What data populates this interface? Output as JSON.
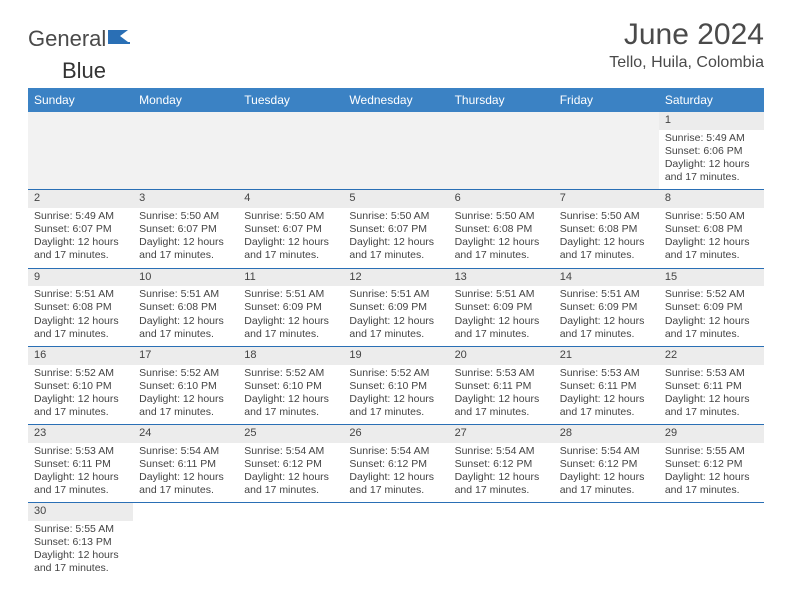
{
  "brand": {
    "part1": "General",
    "part2": "Blue"
  },
  "title": "June 2024",
  "location": "Tello, Huila, Colombia",
  "colors": {
    "header_bg": "#3b82c4",
    "header_text": "#ffffff",
    "rule": "#2a6fb5",
    "daynum_bg": "#ececec",
    "text": "#444444"
  },
  "weekdays": [
    "Sunday",
    "Monday",
    "Tuesday",
    "Wednesday",
    "Thursday",
    "Friday",
    "Saturday"
  ],
  "weeks": [
    [
      null,
      null,
      null,
      null,
      null,
      null,
      {
        "n": "1",
        "sr": "Sunrise: 5:49 AM",
        "ss": "Sunset: 6:06 PM",
        "d1": "Daylight: 12 hours",
        "d2": "and 17 minutes."
      }
    ],
    [
      {
        "n": "2",
        "sr": "Sunrise: 5:49 AM",
        "ss": "Sunset: 6:07 PM",
        "d1": "Daylight: 12 hours",
        "d2": "and 17 minutes."
      },
      {
        "n": "3",
        "sr": "Sunrise: 5:50 AM",
        "ss": "Sunset: 6:07 PM",
        "d1": "Daylight: 12 hours",
        "d2": "and 17 minutes."
      },
      {
        "n": "4",
        "sr": "Sunrise: 5:50 AM",
        "ss": "Sunset: 6:07 PM",
        "d1": "Daylight: 12 hours",
        "d2": "and 17 minutes."
      },
      {
        "n": "5",
        "sr": "Sunrise: 5:50 AM",
        "ss": "Sunset: 6:07 PM",
        "d1": "Daylight: 12 hours",
        "d2": "and 17 minutes."
      },
      {
        "n": "6",
        "sr": "Sunrise: 5:50 AM",
        "ss": "Sunset: 6:08 PM",
        "d1": "Daylight: 12 hours",
        "d2": "and 17 minutes."
      },
      {
        "n": "7",
        "sr": "Sunrise: 5:50 AM",
        "ss": "Sunset: 6:08 PM",
        "d1": "Daylight: 12 hours",
        "d2": "and 17 minutes."
      },
      {
        "n": "8",
        "sr": "Sunrise: 5:50 AM",
        "ss": "Sunset: 6:08 PM",
        "d1": "Daylight: 12 hours",
        "d2": "and 17 minutes."
      }
    ],
    [
      {
        "n": "9",
        "sr": "Sunrise: 5:51 AM",
        "ss": "Sunset: 6:08 PM",
        "d1": "Daylight: 12 hours",
        "d2": "and 17 minutes."
      },
      {
        "n": "10",
        "sr": "Sunrise: 5:51 AM",
        "ss": "Sunset: 6:08 PM",
        "d1": "Daylight: 12 hours",
        "d2": "and 17 minutes."
      },
      {
        "n": "11",
        "sr": "Sunrise: 5:51 AM",
        "ss": "Sunset: 6:09 PM",
        "d1": "Daylight: 12 hours",
        "d2": "and 17 minutes."
      },
      {
        "n": "12",
        "sr": "Sunrise: 5:51 AM",
        "ss": "Sunset: 6:09 PM",
        "d1": "Daylight: 12 hours",
        "d2": "and 17 minutes."
      },
      {
        "n": "13",
        "sr": "Sunrise: 5:51 AM",
        "ss": "Sunset: 6:09 PM",
        "d1": "Daylight: 12 hours",
        "d2": "and 17 minutes."
      },
      {
        "n": "14",
        "sr": "Sunrise: 5:51 AM",
        "ss": "Sunset: 6:09 PM",
        "d1": "Daylight: 12 hours",
        "d2": "and 17 minutes."
      },
      {
        "n": "15",
        "sr": "Sunrise: 5:52 AM",
        "ss": "Sunset: 6:09 PM",
        "d1": "Daylight: 12 hours",
        "d2": "and 17 minutes."
      }
    ],
    [
      {
        "n": "16",
        "sr": "Sunrise: 5:52 AM",
        "ss": "Sunset: 6:10 PM",
        "d1": "Daylight: 12 hours",
        "d2": "and 17 minutes."
      },
      {
        "n": "17",
        "sr": "Sunrise: 5:52 AM",
        "ss": "Sunset: 6:10 PM",
        "d1": "Daylight: 12 hours",
        "d2": "and 17 minutes."
      },
      {
        "n": "18",
        "sr": "Sunrise: 5:52 AM",
        "ss": "Sunset: 6:10 PM",
        "d1": "Daylight: 12 hours",
        "d2": "and 17 minutes."
      },
      {
        "n": "19",
        "sr": "Sunrise: 5:52 AM",
        "ss": "Sunset: 6:10 PM",
        "d1": "Daylight: 12 hours",
        "d2": "and 17 minutes."
      },
      {
        "n": "20",
        "sr": "Sunrise: 5:53 AM",
        "ss": "Sunset: 6:11 PM",
        "d1": "Daylight: 12 hours",
        "d2": "and 17 minutes."
      },
      {
        "n": "21",
        "sr": "Sunrise: 5:53 AM",
        "ss": "Sunset: 6:11 PM",
        "d1": "Daylight: 12 hours",
        "d2": "and 17 minutes."
      },
      {
        "n": "22",
        "sr": "Sunrise: 5:53 AM",
        "ss": "Sunset: 6:11 PM",
        "d1": "Daylight: 12 hours",
        "d2": "and 17 minutes."
      }
    ],
    [
      {
        "n": "23",
        "sr": "Sunrise: 5:53 AM",
        "ss": "Sunset: 6:11 PM",
        "d1": "Daylight: 12 hours",
        "d2": "and 17 minutes."
      },
      {
        "n": "24",
        "sr": "Sunrise: 5:54 AM",
        "ss": "Sunset: 6:11 PM",
        "d1": "Daylight: 12 hours",
        "d2": "and 17 minutes."
      },
      {
        "n": "25",
        "sr": "Sunrise: 5:54 AM",
        "ss": "Sunset: 6:12 PM",
        "d1": "Daylight: 12 hours",
        "d2": "and 17 minutes."
      },
      {
        "n": "26",
        "sr": "Sunrise: 5:54 AM",
        "ss": "Sunset: 6:12 PM",
        "d1": "Daylight: 12 hours",
        "d2": "and 17 minutes."
      },
      {
        "n": "27",
        "sr": "Sunrise: 5:54 AM",
        "ss": "Sunset: 6:12 PM",
        "d1": "Daylight: 12 hours",
        "d2": "and 17 minutes."
      },
      {
        "n": "28",
        "sr": "Sunrise: 5:54 AM",
        "ss": "Sunset: 6:12 PM",
        "d1": "Daylight: 12 hours",
        "d2": "and 17 minutes."
      },
      {
        "n": "29",
        "sr": "Sunrise: 5:55 AM",
        "ss": "Sunset: 6:12 PM",
        "d1": "Daylight: 12 hours",
        "d2": "and 17 minutes."
      }
    ],
    [
      {
        "n": "30",
        "sr": "Sunrise: 5:55 AM",
        "ss": "Sunset: 6:13 PM",
        "d1": "Daylight: 12 hours",
        "d2": "and 17 minutes."
      },
      null,
      null,
      null,
      null,
      null,
      null
    ]
  ]
}
